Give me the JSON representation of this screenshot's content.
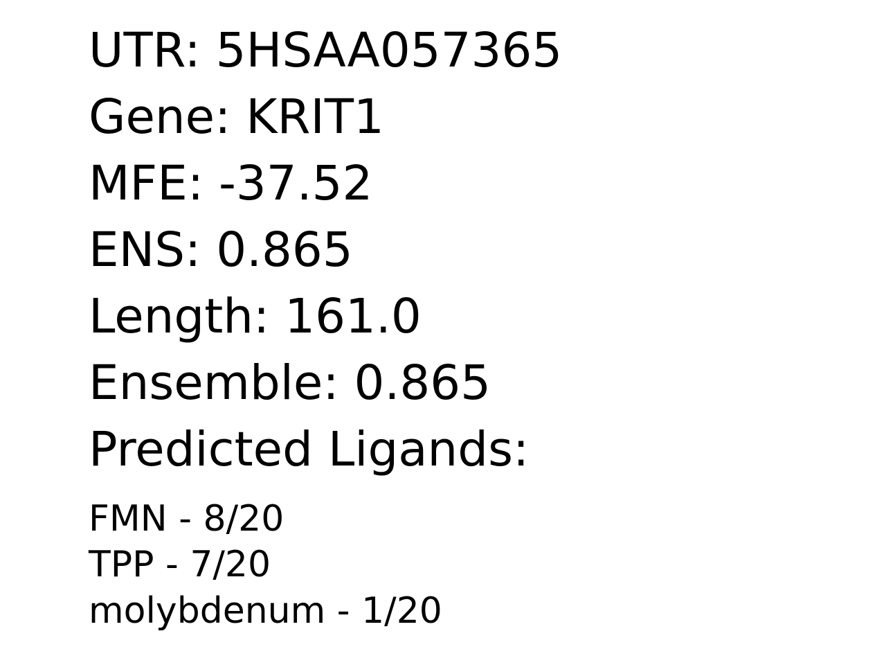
{
  "fields": {
    "utr": {
      "label": "UTR: ",
      "value": "5HSAA057365"
    },
    "gene": {
      "label": "Gene: ",
      "value": "KRIT1"
    },
    "mfe": {
      "label": "MFE: ",
      "value": "-37.52"
    },
    "ens": {
      "label": "ENS: ",
      "value": "0.865"
    },
    "length": {
      "label": "Length: ",
      "value": "161.0"
    },
    "ensemble": {
      "label": "Ensemble: ",
      "value": "0.865"
    }
  },
  "ligands_heading": "Predicted Ligands:",
  "ligands": [
    {
      "name": "FMN",
      "separator": " - ",
      "count": "8/20"
    },
    {
      "name": "TPP",
      "separator": " - ",
      "count": "7/20"
    },
    {
      "name": "molybdenum",
      "separator": " - ",
      "count": "1/20"
    }
  ]
}
